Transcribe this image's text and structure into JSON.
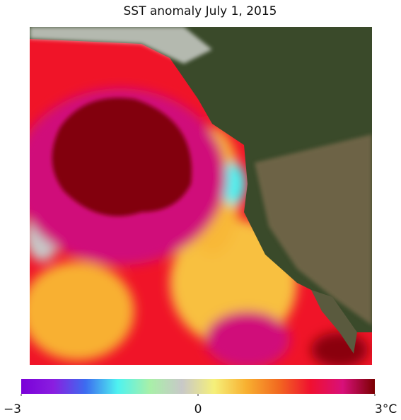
{
  "title": "SST anomaly July 1, 2015",
  "colorbar": {
    "lim": [
      -3,
      3
    ],
    "ticks": [
      {
        "value": -3,
        "label": "−3"
      },
      0,
      {
        "value": 3,
        "label": "3°C"
      }
    ],
    "colors": [
      "#7a00d8",
      "#8a1ee0",
      "#3c6cf0",
      "#4ef2f0",
      "#a8f0a8",
      "#c8c8c8",
      "#f5f07a",
      "#f8b030",
      "#f26a20",
      "#f01030",
      "#d8107a",
      "#7a0000"
    ]
  }
}
